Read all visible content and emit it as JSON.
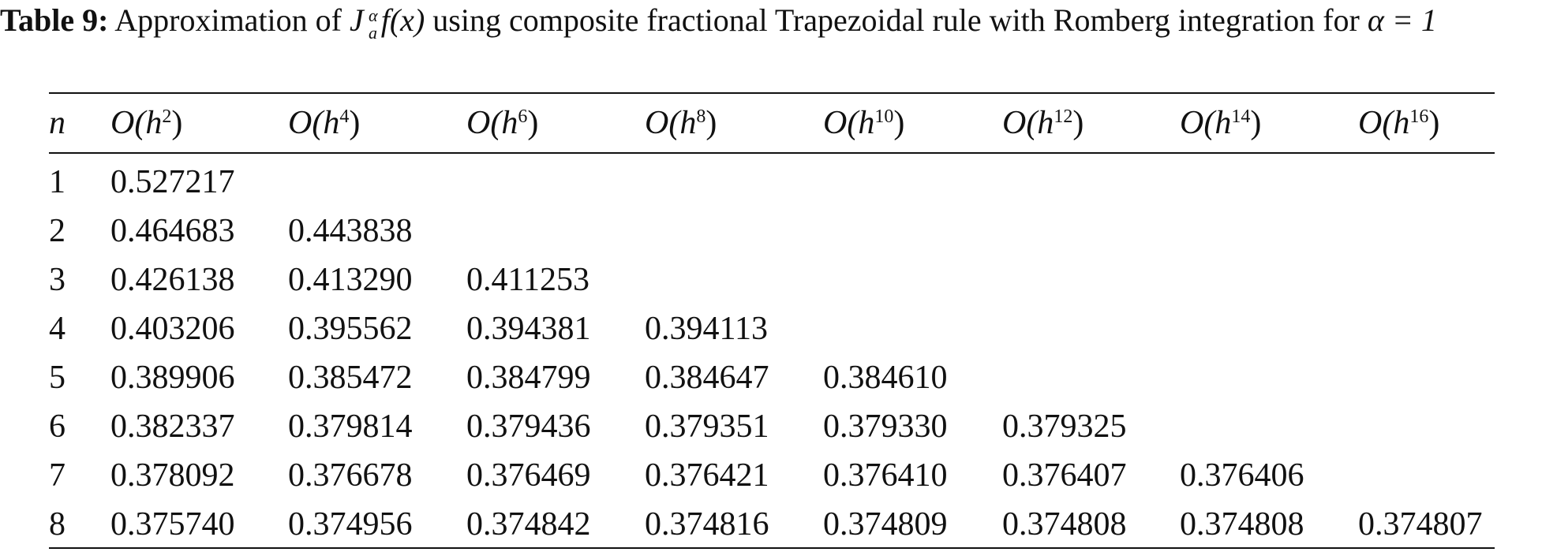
{
  "caption": {
    "label": "Table 9:",
    "text_before": "Approximation of",
    "symbol": "J",
    "symbol_sup": "α",
    "symbol_sub": "a",
    "symbol_after": "f(x)",
    "text_after": "using composite fractional Trapezoidal rule with Romberg integration for",
    "condition": "α = 1"
  },
  "table": {
    "header": {
      "first": "n",
      "columns": [
        {
          "pre": "O(h",
          "sup": "2",
          "post": ")"
        },
        {
          "pre": "O(h",
          "sup": "4",
          "post": ")"
        },
        {
          "pre": "O(h",
          "sup": "6",
          "post": ")"
        },
        {
          "pre": "O(h",
          "sup": "8",
          "post": ")"
        },
        {
          "pre": "O(h",
          "sup": "10",
          "post": ")"
        },
        {
          "pre": "O(h",
          "sup": "12",
          "post": ")"
        },
        {
          "pre": "O(h",
          "sup": "14",
          "post": ")"
        },
        {
          "pre": "O(h",
          "sup": "16",
          "post": ")"
        }
      ]
    },
    "rows": [
      {
        "n": "1",
        "values": [
          "0.527217"
        ]
      },
      {
        "n": "2",
        "values": [
          "0.464683",
          "0.443838"
        ]
      },
      {
        "n": "3",
        "values": [
          "0.426138",
          "0.413290",
          "0.411253"
        ]
      },
      {
        "n": "4",
        "values": [
          "0.403206",
          "0.395562",
          "0.394381",
          "0.394113"
        ]
      },
      {
        "n": "5",
        "values": [
          "0.389906",
          "0.385472",
          "0.384799",
          "0.384647",
          "0.384610"
        ]
      },
      {
        "n": "6",
        "values": [
          "0.382337",
          "0.379814",
          "0.379436",
          "0.379351",
          "0.379330",
          "0.379325"
        ]
      },
      {
        "n": "7",
        "values": [
          "0.378092",
          "0.376678",
          "0.376469",
          "0.376421",
          "0.376410",
          "0.376407",
          "0.376406"
        ]
      },
      {
        "n": "8",
        "values": [
          "0.375740",
          "0.374956",
          "0.374842",
          "0.374816",
          "0.374809",
          "0.374808",
          "0.374808",
          "0.374807"
        ]
      }
    ]
  }
}
